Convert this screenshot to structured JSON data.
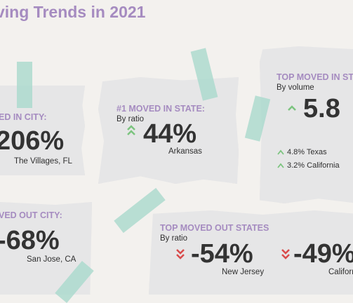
{
  "title": "ving Trends in 2021",
  "colors": {
    "accent": "#a58bc0",
    "up": "#7cc47f",
    "down": "#d94b4b",
    "tape": "#a7d8cc",
    "paper": "#e6e6e7",
    "background": "#f3f1ee"
  },
  "cards": {
    "moved_in_city": {
      "heading": "ED IN CITY:",
      "value": "206%",
      "location": "The Villages, FL"
    },
    "moved_in_state": {
      "heading": "#1 MOVED IN STATE:",
      "sub": "By ratio",
      "arrow": "up-chevron-icon",
      "value": "44%",
      "location": "Arkansas"
    },
    "top_moved_in_states": {
      "heading": "TOP MOVED IN STA",
      "sub": "By volume",
      "arrow": "up-chevron-icon",
      "value": "5.8",
      "items": [
        {
          "text": "4.8% Texas",
          "arrow": "up-arrow-icon"
        },
        {
          "text": "3.2% California",
          "arrow": "up-arrow-icon"
        }
      ]
    },
    "moved_out_city": {
      "heading": "VED OUT CITY:",
      "value": "-68%",
      "location": "San Jose, CA"
    },
    "top_moved_out_states": {
      "heading": "TOP MOVED OUT STATES",
      "sub": "By ratio",
      "entries": [
        {
          "arrow": "down-chevron-icon",
          "value": "-54%",
          "location": "New Jersey"
        },
        {
          "arrow": "down-chevron-icon",
          "value": "-49%",
          "location": "Californ"
        }
      ]
    }
  }
}
